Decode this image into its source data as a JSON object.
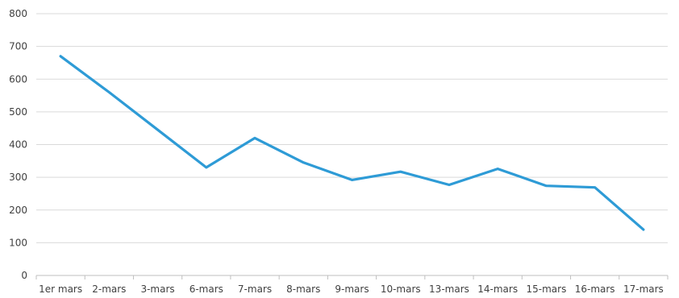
{
  "chart_data": {
    "type": "line",
    "title": "",
    "xlabel": "",
    "ylabel": "",
    "categories": [
      "1er mars",
      "2-mars",
      "3-mars",
      "6-mars",
      "7-mars",
      "8-mars",
      "9-mars",
      "10-mars",
      "13-mars",
      "14-mars",
      "15-mars",
      "16-mars",
      "17-mars"
    ],
    "series": [
      {
        "values": [
          670,
          560,
          445,
          330,
          420,
          345,
          292,
          317,
          277,
          326,
          274,
          269,
          140
        ],
        "color": "#2e9bd6"
      }
    ],
    "ylim": [
      0,
      800
    ],
    "yticks": [
      "0",
      "100",
      "200",
      "300",
      "400",
      "500",
      "600",
      "700",
      "800"
    ],
    "grid": true,
    "legend": "none"
  }
}
